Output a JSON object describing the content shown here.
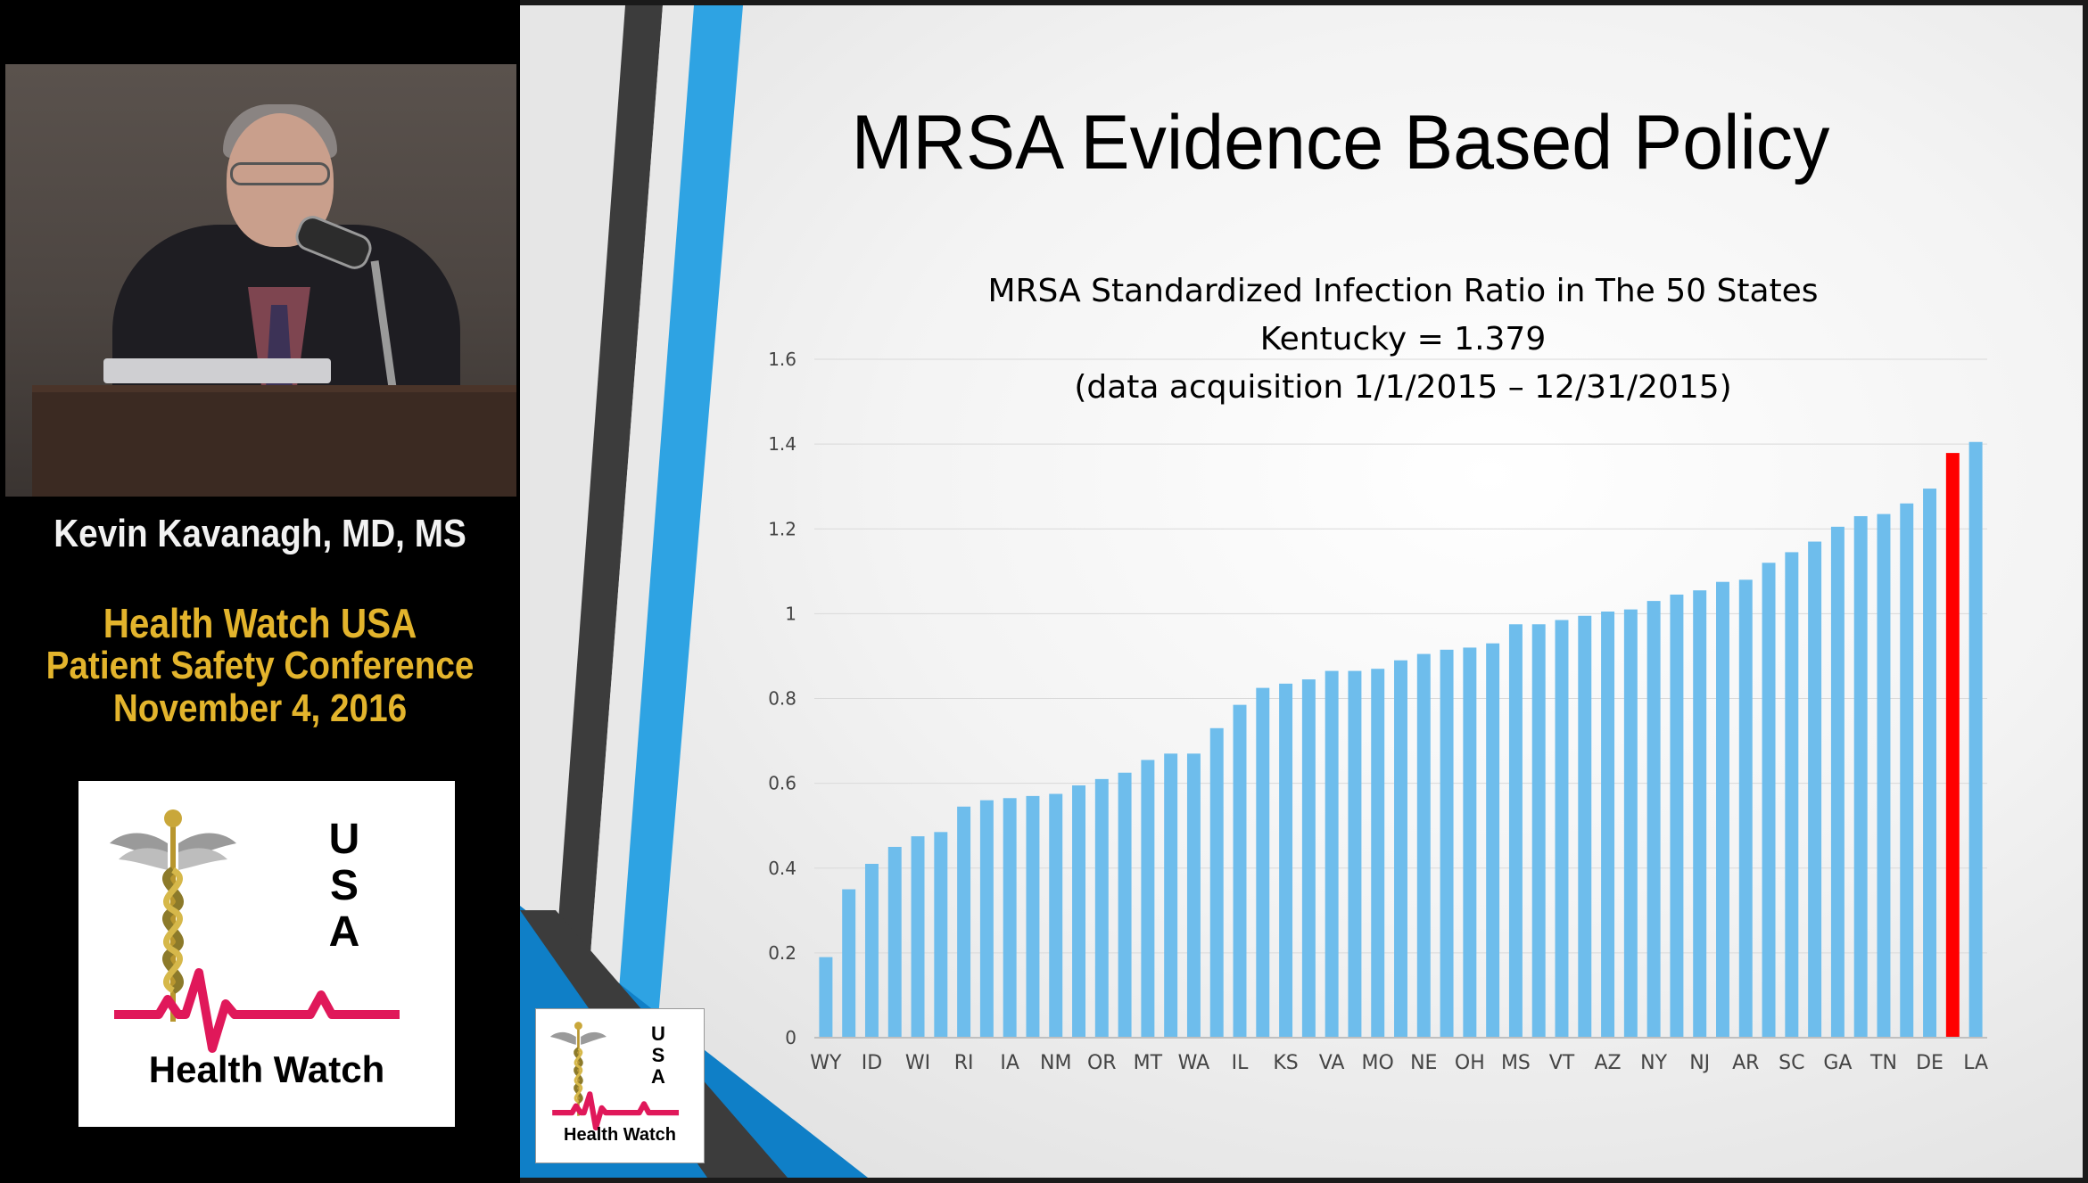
{
  "speaker": {
    "name": "Kevin Kavanagh, MD, MS"
  },
  "conference": {
    "name": "Health Watch USA",
    "subtitle": "Patient Safety Conference",
    "date": "November 4, 2016"
  },
  "logo": {
    "letters": [
      "U",
      "S",
      "A"
    ],
    "text": "Health Watch"
  },
  "slide": {
    "title": "MRSA Evidence Based Policy"
  },
  "colors": {
    "bar": "#6ebdec",
    "highlight_bar": "#ff0000",
    "slide_accent_blue": "#2ea3e3",
    "slide_accent_dark": "#4a4a4a",
    "conference_text": "#e3b42c"
  },
  "chart_data": {
    "type": "bar",
    "title_lines": [
      "MRSA Standardized Infection Ratio in The 50 States",
      "Kentucky = 1.379",
      "(data acquisition 1/1/2015 – 12/31/2015)"
    ],
    "xlabel": "",
    "ylabel": "",
    "ylim": [
      0,
      1.6
    ],
    "yticks": [
      "0",
      "0.2",
      "0.4",
      "0.6",
      "0.8",
      "1",
      "1.2",
      "1.4",
      "1.6"
    ],
    "grid": true,
    "legend": "none",
    "categories": [
      "WY",
      "",
      "ID",
      "",
      "WI",
      "",
      "RI",
      "",
      "IA",
      "",
      "NM",
      "",
      "OR",
      "",
      "MT",
      "",
      "WA",
      "",
      "IL",
      "",
      "KS",
      "",
      "VA",
      "",
      "MO",
      "",
      "NE",
      "",
      "OH",
      "",
      "MS",
      "",
      "VT",
      "",
      "AZ",
      "",
      "NY",
      "",
      "NJ",
      "",
      "AR",
      "",
      "SC",
      "",
      "GA",
      "",
      "TN",
      "",
      "DE",
      "",
      "LA"
    ],
    "values": [
      0.19,
      0.35,
      0.41,
      0.45,
      0.475,
      0.485,
      0.545,
      0.56,
      0.565,
      0.57,
      0.575,
      0.595,
      0.61,
      0.625,
      0.655,
      0.67,
      0.67,
      0.73,
      0.785,
      0.825,
      0.835,
      0.845,
      0.865,
      0.865,
      0.87,
      0.89,
      0.905,
      0.915,
      0.92,
      0.93,
      0.975,
      0.975,
      0.985,
      0.995,
      1.005,
      1.01,
      1.03,
      1.045,
      1.055,
      1.075,
      1.08,
      1.12,
      1.145,
      1.17,
      1.205,
      1.23,
      1.235,
      1.26,
      1.295,
      1.379,
      1.405
    ],
    "highlight": {
      "index": 49,
      "label": "Kentucky",
      "value": 1.379
    }
  }
}
